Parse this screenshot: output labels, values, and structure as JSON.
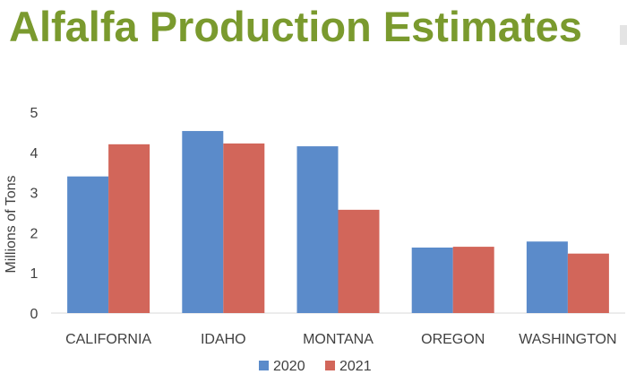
{
  "chart_data": {
    "type": "bar",
    "title": "Alfalfa Production Estimates",
    "ylabel": "Millions of Tons",
    "xlabel": "",
    "categories": [
      "CALIFORNIA",
      "IDAHO",
      "MONTANA",
      "OREGON",
      "WASHINGTON"
    ],
    "series": [
      {
        "name": "2020",
        "color": "#5b8bca",
        "values": [
          3.4,
          4.53,
          4.15,
          1.63,
          1.78
        ]
      },
      {
        "name": "2021",
        "color": "#d2665a",
        "values": [
          4.2,
          4.22,
          2.57,
          1.65,
          1.48
        ]
      }
    ],
    "ylim": [
      0,
      5
    ],
    "yticks": [
      "0",
      "1",
      "2",
      "3",
      "4",
      "5"
    ],
    "grid": false,
    "legend_position": "bottom"
  }
}
